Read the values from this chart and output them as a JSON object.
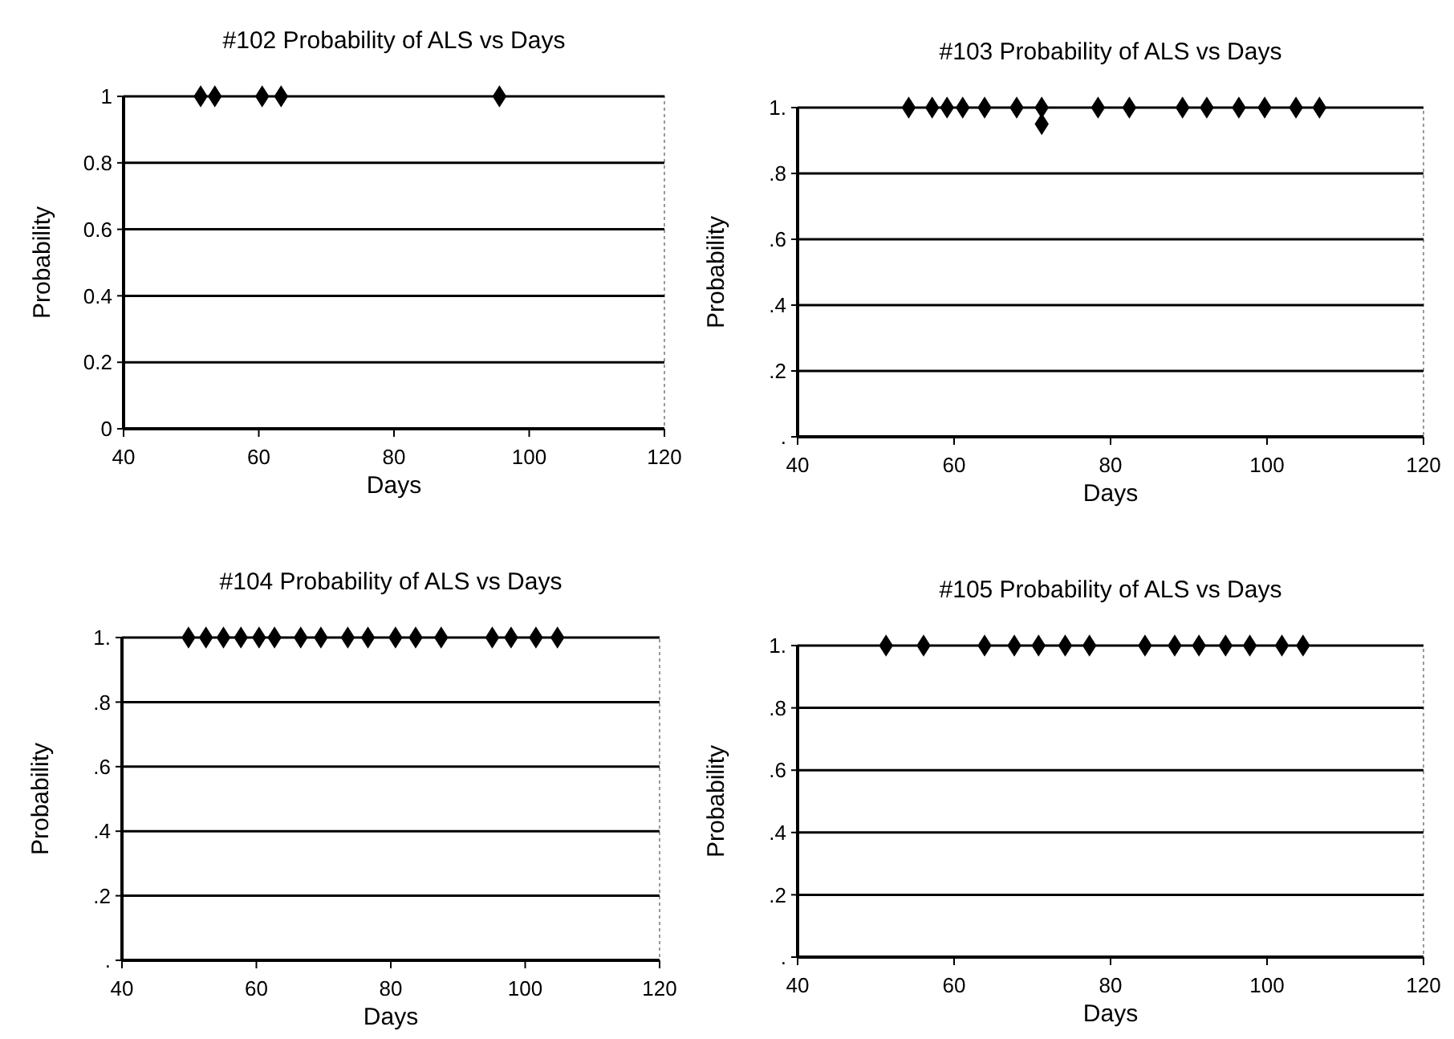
{
  "chart_data": [
    {
      "type": "scatter",
      "title": "#102 Probability of ALS vs Days",
      "xlabel": "Days",
      "ylabel": "Probability",
      "marker": "diamond",
      "grid": "y",
      "xlim": [
        40,
        120
      ],
      "xticks": [
        40,
        60,
        80,
        100,
        120
      ],
      "ylim": [
        0,
        1
      ],
      "yticks": [
        0,
        0.2,
        0.4,
        0.6,
        0.8,
        1
      ],
      "series": [
        {
          "color": "#000000",
          "x": [
            51.4,
            53.5,
            60.5,
            63.3,
            95.6
          ],
          "values": [
            1,
            1,
            1,
            1,
            1
          ]
        }
      ]
    },
    {
      "type": "scatter",
      "title": "#103 Probability of ALS vs Days",
      "xlabel": "Days",
      "ylabel": "Probability",
      "marker": "diamond",
      "grid": "y",
      "xlim": [
        40,
        120
      ],
      "xticks": [
        40,
        60,
        80,
        100,
        120
      ],
      "ylim": [
        0,
        1
      ],
      "yticks": [
        {
          "value": 0,
          "label": "."
        },
        {
          "value": 0.2,
          "label": ".2"
        },
        {
          "value": 0.4,
          "label": ".4"
        },
        {
          "value": 0.6,
          "label": ".6"
        },
        {
          "value": 0.8,
          "label": ".8"
        },
        {
          "value": 1,
          "label": "1."
        }
      ],
      "series": [
        {
          "color": "#000000",
          "x": [
            54.2,
            57.2,
            59.1,
            61.1,
            63.9,
            68.0,
            71.2,
            71.2,
            78.4,
            82.4,
            89.2,
            92.3,
            96.4,
            99.7,
            103.7,
            106.7
          ],
          "values": [
            1,
            1,
            1,
            1,
            1,
            1,
            1,
            0.95,
            1,
            1,
            1,
            1,
            1,
            1,
            1,
            1
          ]
        }
      ]
    },
    {
      "type": "scatter",
      "title": "#104 Probability of ALS vs Days",
      "xlabel": "Days",
      "ylabel": "Probability",
      "marker": "diamond",
      "grid": "y",
      "xlim": [
        40,
        120
      ],
      "xticks": [
        40,
        60,
        80,
        100,
        120
      ],
      "ylim": [
        0,
        1
      ],
      "yticks": [
        {
          "value": 0,
          "label": "."
        },
        {
          "value": 0.2,
          "label": ".2"
        },
        {
          "value": 0.4,
          "label": ".4"
        },
        {
          "value": 0.6,
          "label": ".6"
        },
        {
          "value": 0.8,
          "label": ".8"
        },
        {
          "value": 1,
          "label": "1."
        }
      ],
      "series": [
        {
          "color": "#000000",
          "x": [
            49.9,
            52.5,
            55.1,
            57.7,
            60.4,
            62.7,
            66.6,
            69.6,
            73.6,
            76.6,
            80.7,
            83.7,
            87.5,
            95.1,
            97.9,
            101.6,
            104.8
          ],
          "values": [
            1,
            1,
            1,
            1,
            1,
            1,
            1,
            1,
            1,
            1,
            1,
            1,
            1,
            1,
            1,
            1,
            1
          ]
        }
      ]
    },
    {
      "type": "scatter",
      "title": "#105 Probability of ALS vs Days",
      "xlabel": "Days",
      "ylabel": "Probability",
      "marker": "diamond",
      "grid": "y",
      "xlim": [
        40,
        120
      ],
      "xticks": [
        40,
        60,
        80,
        100,
        120
      ],
      "ylim": [
        0,
        1
      ],
      "yticks": [
        {
          "value": 0,
          "label": "."
        },
        {
          "value": 0.2,
          "label": ".2"
        },
        {
          "value": 0.4,
          "label": ".4"
        },
        {
          "value": 0.6,
          "label": ".6"
        },
        {
          "value": 0.8,
          "label": ".8"
        },
        {
          "value": 1,
          "label": "1."
        }
      ],
      "series": [
        {
          "color": "#000000",
          "x": [
            51.3,
            56.1,
            63.9,
            67.7,
            70.8,
            74.2,
            77.3,
            84.4,
            88.2,
            91.3,
            94.7,
            97.8,
            101.9,
            104.6
          ],
          "values": [
            1,
            1,
            1,
            1,
            1,
            1,
            1,
            1,
            1,
            1,
            1,
            1,
            1,
            1
          ]
        }
      ]
    }
  ]
}
